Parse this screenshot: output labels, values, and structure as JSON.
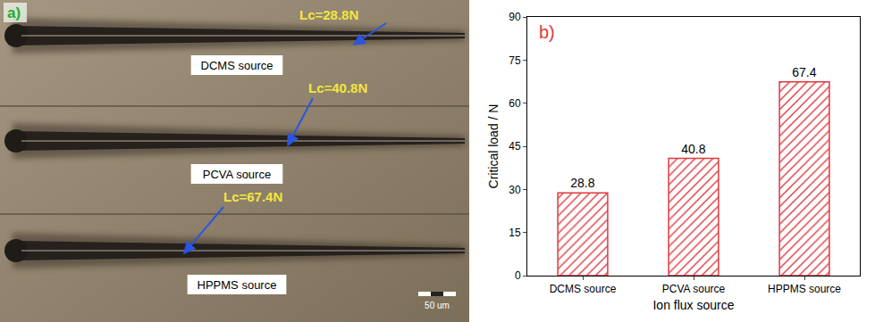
{
  "panel_a": {
    "label": "a)",
    "tracks": [
      {
        "name": "DCMS source",
        "critical_load_label": "Lc=28.8N"
      },
      {
        "name": "PCVA source",
        "critical_load_label": "Lc=40.8N"
      },
      {
        "name": "HPPMS source",
        "critical_load_label": "Lc=67.4N"
      }
    ],
    "scale_bar": "50 um"
  },
  "chart_data": {
    "type": "bar",
    "panel_label": "b)",
    "categories": [
      "DCMS source",
      "PCVA source",
      "HPPMS source"
    ],
    "values": [
      28.8,
      40.8,
      67.4
    ],
    "color": "#e0393e",
    "x_label": "Ion flux source",
    "y_label": "Critical load / N",
    "ylim": [
      0,
      90
    ],
    "yticks": [
      0,
      15,
      30,
      45,
      60,
      75,
      90
    ],
    "data_labels": true,
    "grid": false
  }
}
